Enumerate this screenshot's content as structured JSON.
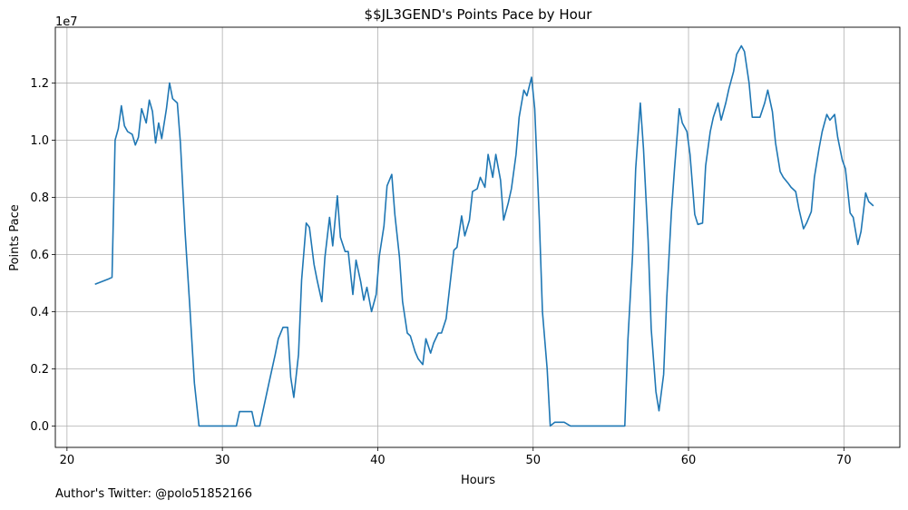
{
  "chart_data": {
    "type": "line",
    "title": "$$JL3GEND's Points Pace by Hour",
    "xlabel": "Hours",
    "ylabel": "Points Pace",
    "y_offset_label": "1e7",
    "xlim": [
      19.25,
      73.6
    ],
    "ylim": [
      -750000,
      13950000
    ],
    "x_ticks": [
      20,
      30,
      40,
      50,
      60,
      70
    ],
    "y_ticks": [
      0,
      2000000,
      4000000,
      6000000,
      8000000,
      10000000,
      12000000
    ],
    "y_tick_labels": [
      "0.0",
      "0.2",
      "0.4",
      "0.6",
      "0.8",
      "1.0",
      "1.2"
    ],
    "grid": true,
    "line_color": "#1f77b4",
    "series": [
      {
        "points": [
          [
            21.8,
            4960000
          ],
          [
            22.7,
            5150000
          ],
          [
            22.9,
            5200000
          ],
          [
            23.1,
            10000000
          ],
          [
            23.3,
            10400000
          ],
          [
            23.5,
            11200000
          ],
          [
            23.7,
            10500000
          ],
          [
            23.9,
            10300000
          ],
          [
            24.2,
            10200000
          ],
          [
            24.4,
            9830000
          ],
          [
            24.6,
            10100000
          ],
          [
            24.8,
            11100000
          ],
          [
            25.1,
            10600000
          ],
          [
            25.3,
            11400000
          ],
          [
            25.5,
            11000000
          ],
          [
            25.7,
            9900000
          ],
          [
            25.9,
            10600000
          ],
          [
            26.1,
            10050000
          ],
          [
            26.4,
            11100000
          ],
          [
            26.6,
            12000000
          ],
          [
            26.8,
            11450000
          ],
          [
            27.1,
            11300000
          ],
          [
            27.3,
            9900000
          ],
          [
            27.6,
            6800000
          ],
          [
            27.9,
            4200000
          ],
          [
            28.2,
            1500000
          ],
          [
            28.5,
            0
          ],
          [
            30.9,
            0
          ],
          [
            31.1,
            500000
          ],
          [
            31.9,
            500000
          ],
          [
            32.1,
            0
          ],
          [
            32.4,
            0
          ],
          [
            33.0,
            1500000
          ],
          [
            33.4,
            2500000
          ],
          [
            33.6,
            3050000
          ],
          [
            33.9,
            3450000
          ],
          [
            34.2,
            3450000
          ],
          [
            34.4,
            1700000
          ],
          [
            34.6,
            1000000
          ],
          [
            34.9,
            2500000
          ],
          [
            35.1,
            5100000
          ],
          [
            35.4,
            7100000
          ],
          [
            35.6,
            6950000
          ],
          [
            35.9,
            5650000
          ],
          [
            36.1,
            5100000
          ],
          [
            36.4,
            4350000
          ],
          [
            36.6,
            5900000
          ],
          [
            36.9,
            7300000
          ],
          [
            37.1,
            6300000
          ],
          [
            37.4,
            8050000
          ],
          [
            37.6,
            6600000
          ],
          [
            37.9,
            6100000
          ],
          [
            38.1,
            6100000
          ],
          [
            38.4,
            4600000
          ],
          [
            38.6,
            5800000
          ],
          [
            38.9,
            5050000
          ],
          [
            39.1,
            4400000
          ],
          [
            39.3,
            4850000
          ],
          [
            39.6,
            4000000
          ],
          [
            39.9,
            4600000
          ],
          [
            40.1,
            5950000
          ],
          [
            40.4,
            7000000
          ],
          [
            40.6,
            8400000
          ],
          [
            40.9,
            8800000
          ],
          [
            41.1,
            7400000
          ],
          [
            41.4,
            5900000
          ],
          [
            41.6,
            4350000
          ],
          [
            41.9,
            3250000
          ],
          [
            42.1,
            3150000
          ],
          [
            42.4,
            2600000
          ],
          [
            42.6,
            2350000
          ],
          [
            42.9,
            2150000
          ],
          [
            43.1,
            3050000
          ],
          [
            43.4,
            2550000
          ],
          [
            43.6,
            2900000
          ],
          [
            43.9,
            3250000
          ],
          [
            44.1,
            3250000
          ],
          [
            44.4,
            3750000
          ],
          [
            44.6,
            4700000
          ],
          [
            44.9,
            6150000
          ],
          [
            45.1,
            6250000
          ],
          [
            45.4,
            7350000
          ],
          [
            45.6,
            6650000
          ],
          [
            45.9,
            7200000
          ],
          [
            46.1,
            8200000
          ],
          [
            46.4,
            8300000
          ],
          [
            46.6,
            8700000
          ],
          [
            46.9,
            8350000
          ],
          [
            47.1,
            9500000
          ],
          [
            47.4,
            8700000
          ],
          [
            47.6,
            9500000
          ],
          [
            47.9,
            8600000
          ],
          [
            48.1,
            7200000
          ],
          [
            48.4,
            7800000
          ],
          [
            48.6,
            8300000
          ],
          [
            48.9,
            9500000
          ],
          [
            49.1,
            10800000
          ],
          [
            49.4,
            11750000
          ],
          [
            49.6,
            11550000
          ],
          [
            49.9,
            12200000
          ],
          [
            50.1,
            11100000
          ],
          [
            50.4,
            7200000
          ],
          [
            50.6,
            4000000
          ],
          [
            50.9,
            2000000
          ],
          [
            51.1,
            0
          ],
          [
            51.4,
            130000
          ],
          [
            52.0,
            130000
          ],
          [
            52.4,
            0
          ],
          [
            55.9,
            0
          ],
          [
            56.1,
            3000000
          ],
          [
            56.4,
            6000000
          ],
          [
            56.6,
            9000000
          ],
          [
            56.9,
            11300000
          ],
          [
            57.1,
            9700000
          ],
          [
            57.4,
            6500000
          ],
          [
            57.6,
            3400000
          ],
          [
            57.9,
            1200000
          ],
          [
            58.1,
            530000
          ],
          [
            58.4,
            1800000
          ],
          [
            58.6,
            4500000
          ],
          [
            58.9,
            7500000
          ],
          [
            59.1,
            9000000
          ],
          [
            59.4,
            11100000
          ],
          [
            59.6,
            10600000
          ],
          [
            59.9,
            10300000
          ],
          [
            60.1,
            9500000
          ],
          [
            60.4,
            7400000
          ],
          [
            60.6,
            7050000
          ],
          [
            60.9,
            7100000
          ],
          [
            61.1,
            9100000
          ],
          [
            61.4,
            10300000
          ],
          [
            61.6,
            10800000
          ],
          [
            61.9,
            11300000
          ],
          [
            62.1,
            10700000
          ],
          [
            62.4,
            11300000
          ],
          [
            62.6,
            11800000
          ],
          [
            62.9,
            12400000
          ],
          [
            63.1,
            13000000
          ],
          [
            63.4,
            13300000
          ],
          [
            63.6,
            13100000
          ],
          [
            63.9,
            12000000
          ],
          [
            64.1,
            10800000
          ],
          [
            64.4,
            10800000
          ],
          [
            64.6,
            10800000
          ],
          [
            64.9,
            11300000
          ],
          [
            65.1,
            11750000
          ],
          [
            65.4,
            11000000
          ],
          [
            65.6,
            9900000
          ],
          [
            65.9,
            8900000
          ],
          [
            66.1,
            8700000
          ],
          [
            66.4,
            8500000
          ],
          [
            66.6,
            8350000
          ],
          [
            66.9,
            8200000
          ],
          [
            67.1,
            7600000
          ],
          [
            67.4,
            6900000
          ],
          [
            67.6,
            7100000
          ],
          [
            67.9,
            7500000
          ],
          [
            68.1,
            8700000
          ],
          [
            68.4,
            9700000
          ],
          [
            68.6,
            10300000
          ],
          [
            68.9,
            10900000
          ],
          [
            69.1,
            10700000
          ],
          [
            69.4,
            10900000
          ],
          [
            69.6,
            10100000
          ],
          [
            69.9,
            9300000
          ],
          [
            70.1,
            9000000
          ],
          [
            70.4,
            7450000
          ],
          [
            70.6,
            7300000
          ],
          [
            70.9,
            6350000
          ],
          [
            71.1,
            6800000
          ],
          [
            71.4,
            8150000
          ],
          [
            71.6,
            7850000
          ],
          [
            71.9,
            7700000
          ]
        ]
      }
    ]
  },
  "footer": {
    "note": "Author's Twitter: @polo51852166"
  }
}
